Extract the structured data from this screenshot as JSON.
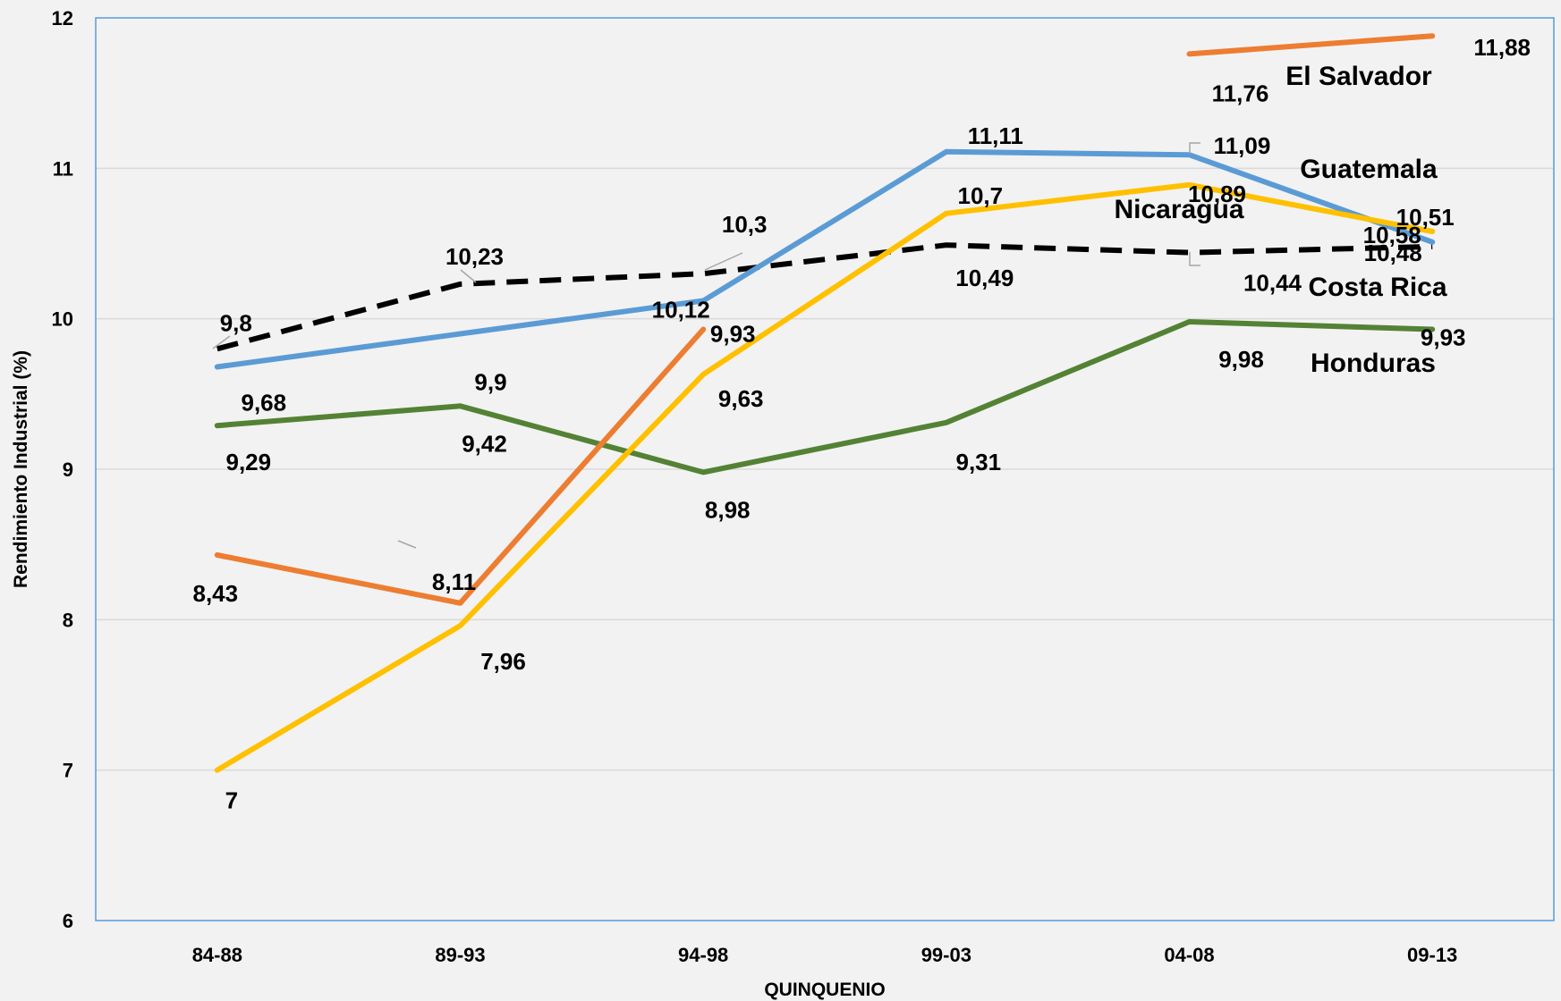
{
  "chart_data": {
    "type": "line",
    "title": "",
    "xlabel": "QUINQUENIO",
    "ylabel": "Rendimiento Industrial (%)",
    "categories": [
      "84-88",
      "89-93",
      "94-98",
      "99-03",
      "04-08",
      "09-13"
    ],
    "ylim": [
      6,
      12
    ],
    "yticks": [
      "6",
      "7",
      "8",
      "9",
      "10",
      "11",
      "12"
    ],
    "grid": true,
    "legend": "series labels beside lines (no legend box)",
    "series": [
      {
        "name": "El Salvador",
        "color": "#ed7d31",
        "dashed": false,
        "values": [
          8.43,
          8.11,
          9.93,
          null,
          11.76,
          11.88
        ],
        "labels": [
          "8,43",
          "8,11",
          "9,93",
          "",
          "11,76",
          "11,88"
        ]
      },
      {
        "name": "Guatemala",
        "color": "#5b9bd5",
        "dashed": false,
        "values": [
          9.68,
          9.9,
          10.12,
          11.11,
          11.09,
          10.51
        ],
        "labels": [
          "9,68",
          "9,9",
          "10,12",
          "11,11",
          "11,09",
          "10,51"
        ]
      },
      {
        "name": "Nicaragua",
        "color": "#ffc000",
        "dashed": false,
        "values": [
          7,
          7.96,
          9.63,
          10.7,
          10.89,
          10.58
        ],
        "labels": [
          "7",
          "7,96",
          "9,63",
          "10,7",
          "10,89",
          "10,58"
        ]
      },
      {
        "name": "Costa Rica",
        "color": "#000000",
        "dashed": true,
        "values": [
          9.8,
          10.23,
          10.3,
          10.49,
          10.44,
          10.48
        ],
        "labels": [
          "9,8",
          "10,23",
          "10,3",
          "10,49",
          "10,44",
          "10,48"
        ]
      },
      {
        "name": "Honduras",
        "color": "#548235",
        "dashed": false,
        "values": [
          9.29,
          9.42,
          8.98,
          9.31,
          9.98,
          9.93
        ],
        "labels": [
          "9,29",
          "9,42",
          "8,98",
          "9,31",
          "9,98",
          "9,93"
        ]
      }
    ]
  }
}
